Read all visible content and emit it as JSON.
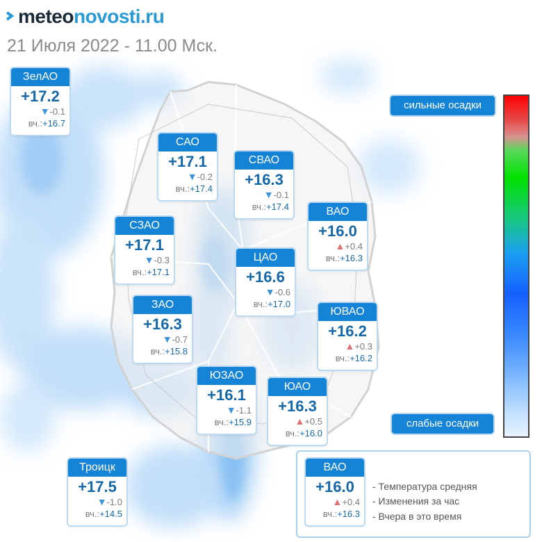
{
  "brand": {
    "prefix": "meteo",
    "suffix": "novosti.ru",
    "accent": "#2a9ad6"
  },
  "subtitle": "21 Июля 2022 - 11.00 Мск.",
  "districts": [
    {
      "name": "ЗелАО",
      "temp": "+17.2",
      "dir": "down",
      "change": "-0.1",
      "yest_prefix": "вч.:",
      "yest": "+16.7"
    },
    {
      "name": "САО",
      "temp": "+17.1",
      "dir": "down",
      "change": "-0.2",
      "yest_prefix": "вч.:",
      "yest": "+17.4"
    },
    {
      "name": "СВАО",
      "temp": "+16.3",
      "dir": "down",
      "change": "-0.1",
      "yest_prefix": "вч.:",
      "yest": "+17.4"
    },
    {
      "name": "ВАО",
      "temp": "+16.0",
      "dir": "up",
      "change": "+0.4",
      "yest_prefix": "вч.:",
      "yest": "+16.3"
    },
    {
      "name": "СЗАО",
      "temp": "+17.1",
      "dir": "down",
      "change": "-0.3",
      "yest_prefix": "вч.:",
      "yest": "+17.1"
    },
    {
      "name": "ЦАО",
      "temp": "+16.6",
      "dir": "down",
      "change": "-0.6",
      "yest_prefix": "вч.:",
      "yest": "+17.0"
    },
    {
      "name": "ЗАО",
      "temp": "+16.3",
      "dir": "down",
      "change": "-0.7",
      "yest_prefix": "вч.:",
      "yest": "+15.8"
    },
    {
      "name": "ЮВАО",
      "temp": "+16.2",
      "dir": "up",
      "change": "+0.3",
      "yest_prefix": "вч.:",
      "yest": "+16.2"
    },
    {
      "name": "ЮЗАО",
      "temp": "+16.1",
      "dir": "down",
      "change": "-1.1",
      "yest_prefix": "вч.:",
      "yest": "+15.9"
    },
    {
      "name": "ЮАО",
      "temp": "+16.3",
      "dir": "up",
      "change": "+0.5",
      "yest_prefix": "вч.:",
      "yest": "+16.0"
    },
    {
      "name": "Троицк",
      "temp": "+17.5",
      "dir": "down",
      "change": "-1.0",
      "yest_prefix": "вч.:",
      "yest": "+14.5"
    }
  ],
  "scale": {
    "top_label": "сильные осадки",
    "bottom_label": "слабые осадки"
  },
  "legend": {
    "sample": {
      "name": "ВАО",
      "temp": "+16.0",
      "dir": "up",
      "change": "+0.4",
      "yest_prefix": "вч.:",
      "yest": "+16.3"
    },
    "items": [
      "- Температура средняя",
      "- Изменения за час",
      "- Вчера в это время"
    ]
  },
  "icons": {
    "down": "triangle-down",
    "up": "triangle-up"
  },
  "colors": {
    "header": "#1583d6",
    "temp": "#1568a8",
    "down": "#3b93dc",
    "up": "#e07070",
    "precip": "#9ccaf6"
  }
}
